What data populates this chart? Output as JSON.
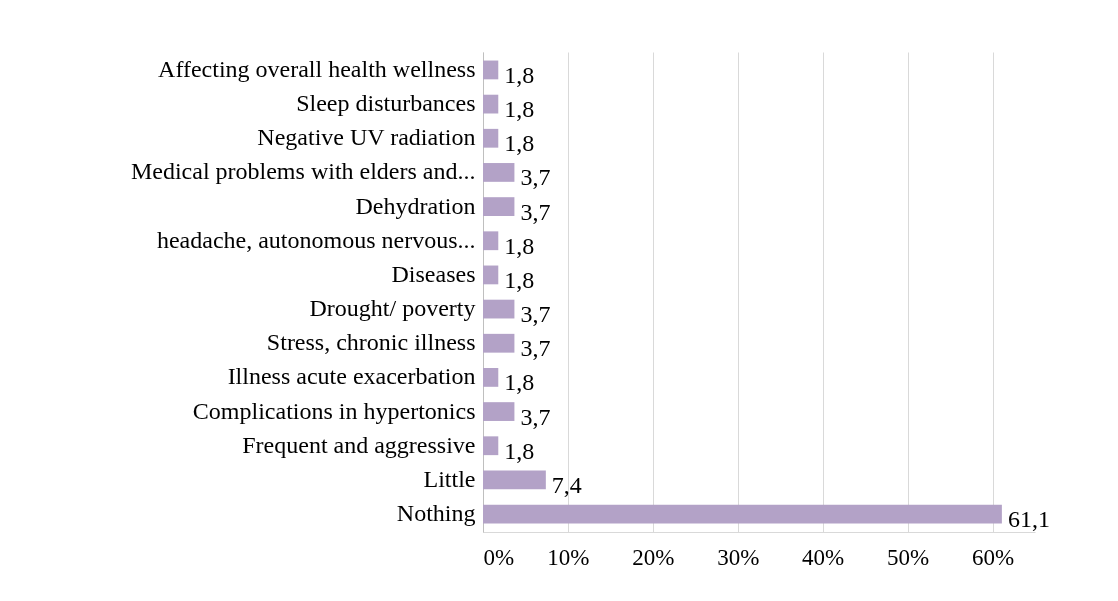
{
  "chart_data": {
    "type": "bar",
    "orientation": "horizontal",
    "categories": [
      "Affecting overall health wellness",
      "Sleep disturbances",
      "Negative UV radiation",
      "Medical problems with elders and...",
      "Dehydration",
      "headache, autonomous nervous...",
      "Diseases",
      "Drought/ poverty",
      "Stress, chronic illness",
      "Illness acute exacerbation",
      "Complications in hypertonics",
      "Frequent and aggressive",
      "Little",
      "Nothing"
    ],
    "values": [
      1.8,
      1.8,
      1.8,
      3.7,
      3.7,
      1.8,
      1.8,
      3.7,
      3.7,
      1.8,
      3.7,
      1.8,
      7.4,
      61.1
    ],
    "value_labels": [
      "1,8",
      "1,8",
      "1,8",
      "3,7",
      "3,7",
      "1,8",
      "1,8",
      "3,7",
      "3,7",
      "1,8",
      "3,7",
      "1,8",
      "7,4",
      "61,1"
    ],
    "color": "#b3a2c7",
    "xlim": [
      0,
      65
    ],
    "xticks": [
      {
        "value": 0,
        "label": "0%"
      },
      {
        "value": 10,
        "label": "10%"
      },
      {
        "value": 20,
        "label": "20%"
      },
      {
        "value": 30,
        "label": "30%"
      },
      {
        "value": 40,
        "label": "40%"
      },
      {
        "value": 50,
        "label": "50%"
      },
      {
        "value": 60,
        "label": "60%"
      }
    ],
    "grid": "x"
  }
}
